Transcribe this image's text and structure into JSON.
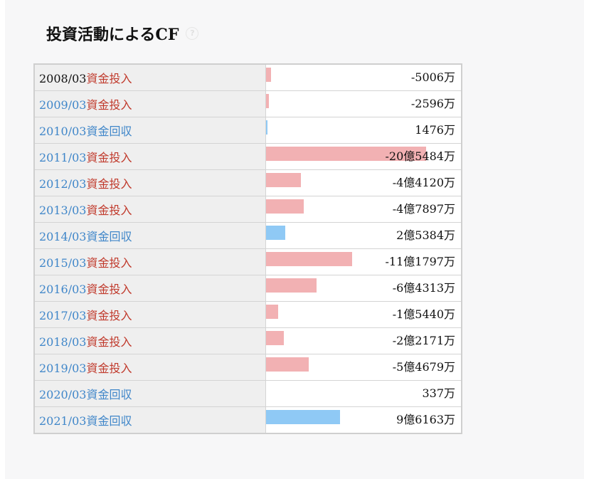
{
  "title": "投資活動によるCF",
  "help_icon": "question-circle-icon",
  "colors": {
    "invest": "#f2b1b3",
    "collect": "#8fc9f5",
    "link": "#3f86c9",
    "type_invest_text": "#c0392b"
  },
  "rows": [
    {
      "year": "2008/03",
      "type": "資金投入",
      "amount": "-5006万",
      "kind": "in",
      "linked": false,
      "bar_fraction": 0.024
    },
    {
      "year": "2009/03",
      "type": "資金投入",
      "amount": "-2596万",
      "kind": "in",
      "linked": true,
      "bar_fraction": 0.013
    },
    {
      "year": "2010/03",
      "type": "資金回収",
      "amount": "1476万",
      "kind": "out",
      "linked": true,
      "bar_fraction": 0.009
    },
    {
      "year": "2011/03",
      "type": "資金投入",
      "amount": "-20億5484万",
      "kind": "in",
      "linked": true,
      "bar_fraction": 0.82
    },
    {
      "year": "2012/03",
      "type": "資金投入",
      "amount": "-4億4120万",
      "kind": "in",
      "linked": true,
      "bar_fraction": 0.18
    },
    {
      "year": "2013/03",
      "type": "資金投入",
      "amount": "-4億7897万",
      "kind": "in",
      "linked": true,
      "bar_fraction": 0.193
    },
    {
      "year": "2014/03",
      "type": "資金回収",
      "amount": "2億5384万",
      "kind": "out",
      "linked": true,
      "bar_fraction": 0.1
    },
    {
      "year": "2015/03",
      "type": "資金投入",
      "amount": "-11億1797万",
      "kind": "in",
      "linked": true,
      "bar_fraction": 0.44
    },
    {
      "year": "2016/03",
      "type": "資金投入",
      "amount": "-6億4313万",
      "kind": "in",
      "linked": true,
      "bar_fraction": 0.26
    },
    {
      "year": "2017/03",
      "type": "資金投入",
      "amount": "-1億5440万",
      "kind": "in",
      "linked": true,
      "bar_fraction": 0.062
    },
    {
      "year": "2018/03",
      "type": "資金投入",
      "amount": "-2億2171万",
      "kind": "in",
      "linked": true,
      "bar_fraction": 0.093
    },
    {
      "year": "2019/03",
      "type": "資金投入",
      "amount": "-5億4679万",
      "kind": "in",
      "linked": true,
      "bar_fraction": 0.22
    },
    {
      "year": "2020/03",
      "type": "資金回収",
      "amount": "337万",
      "kind": "out",
      "linked": true,
      "bar_fraction": 0.002
    },
    {
      "year": "2021/03",
      "type": "資金回収",
      "amount": "9億6163万",
      "kind": "out",
      "linked": true,
      "bar_fraction": 0.38
    }
  ]
}
